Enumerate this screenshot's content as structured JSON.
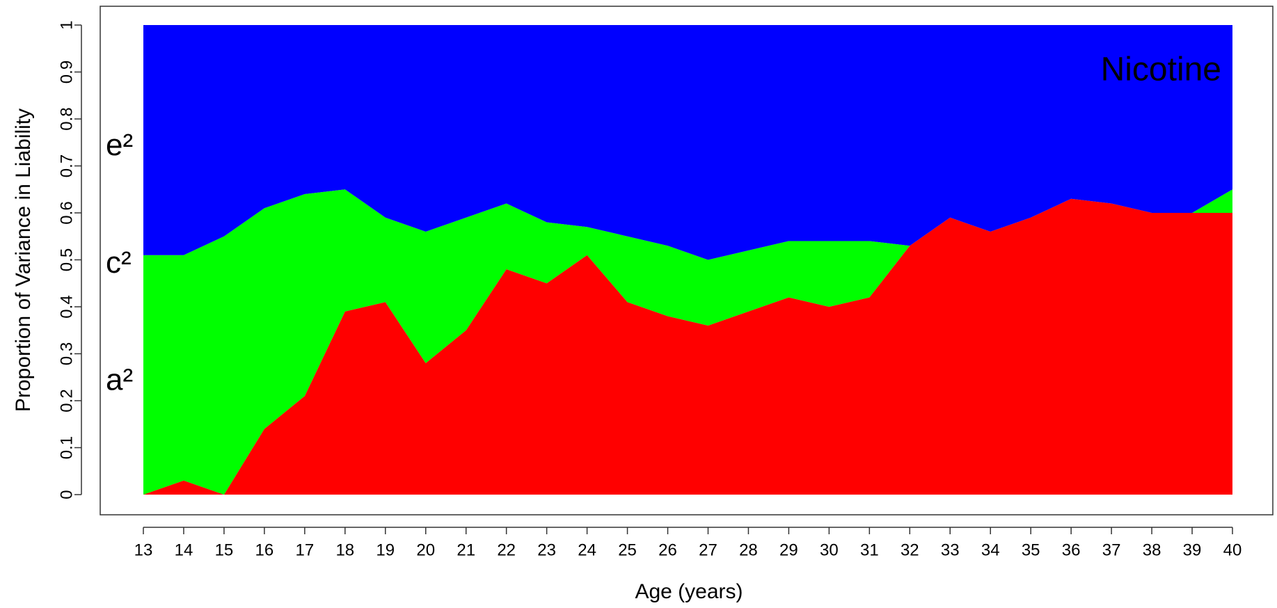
{
  "chart_data": {
    "type": "stacked_area",
    "x_label": "Age (years)",
    "y_label": "Proportion of Variance in Liability",
    "annotation": "Nicotine",
    "x": [
      13,
      14,
      15,
      16,
      17,
      18,
      19,
      20,
      21,
      22,
      23,
      24,
      25,
      26,
      27,
      28,
      29,
      30,
      31,
      32,
      33,
      34,
      35,
      36,
      37,
      38,
      39,
      40
    ],
    "xlim": [
      13,
      40
    ],
    "xticks": [
      13,
      14,
      15,
      16,
      17,
      18,
      19,
      20,
      21,
      22,
      23,
      24,
      25,
      26,
      27,
      28,
      29,
      30,
      31,
      32,
      33,
      34,
      35,
      36,
      37,
      38,
      39,
      40
    ],
    "ylim": [
      0,
      1
    ],
    "yticks": [
      0,
      0.1,
      0.2,
      0.3,
      0.4,
      0.5,
      0.6,
      0.7,
      0.8,
      0.9,
      1
    ],
    "series": [
      {
        "name": "a²",
        "color": "#ff0000",
        "values": [
          0,
          0.03,
          0,
          0.14,
          0.21,
          0.39,
          0.41,
          0.28,
          0.35,
          0.48,
          0.45,
          0.51,
          0.41,
          0.38,
          0.36,
          0.39,
          0.42,
          0.4,
          0.42,
          0.53,
          0.59,
          0.56,
          0.59,
          0.63,
          0.62,
          0.6,
          0.6,
          0.6
        ]
      },
      {
        "name": "c²",
        "color": "#00ff00",
        "values": [
          0.51,
          0.48,
          0.55,
          0.47,
          0.43,
          0.26,
          0.18,
          0.28,
          0.24,
          0.14,
          0.13,
          0.06,
          0.14,
          0.15,
          0.14,
          0.13,
          0.12,
          0.14,
          0.12,
          0,
          0,
          0,
          0,
          0,
          0,
          0,
          0,
          0.05
        ]
      },
      {
        "name": "e²",
        "color": "#0000ff",
        "values": [
          0.49,
          0.49,
          0.45,
          0.39,
          0.36,
          0.35,
          0.41,
          0.44,
          0.41,
          0.38,
          0.42,
          0.43,
          0.45,
          0.47,
          0.5,
          0.48,
          0.46,
          0.46,
          0.46,
          0.47,
          0.41,
          0.44,
          0.41,
          0.37,
          0.38,
          0.4,
          0.4,
          0.35
        ]
      }
    ]
  }
}
